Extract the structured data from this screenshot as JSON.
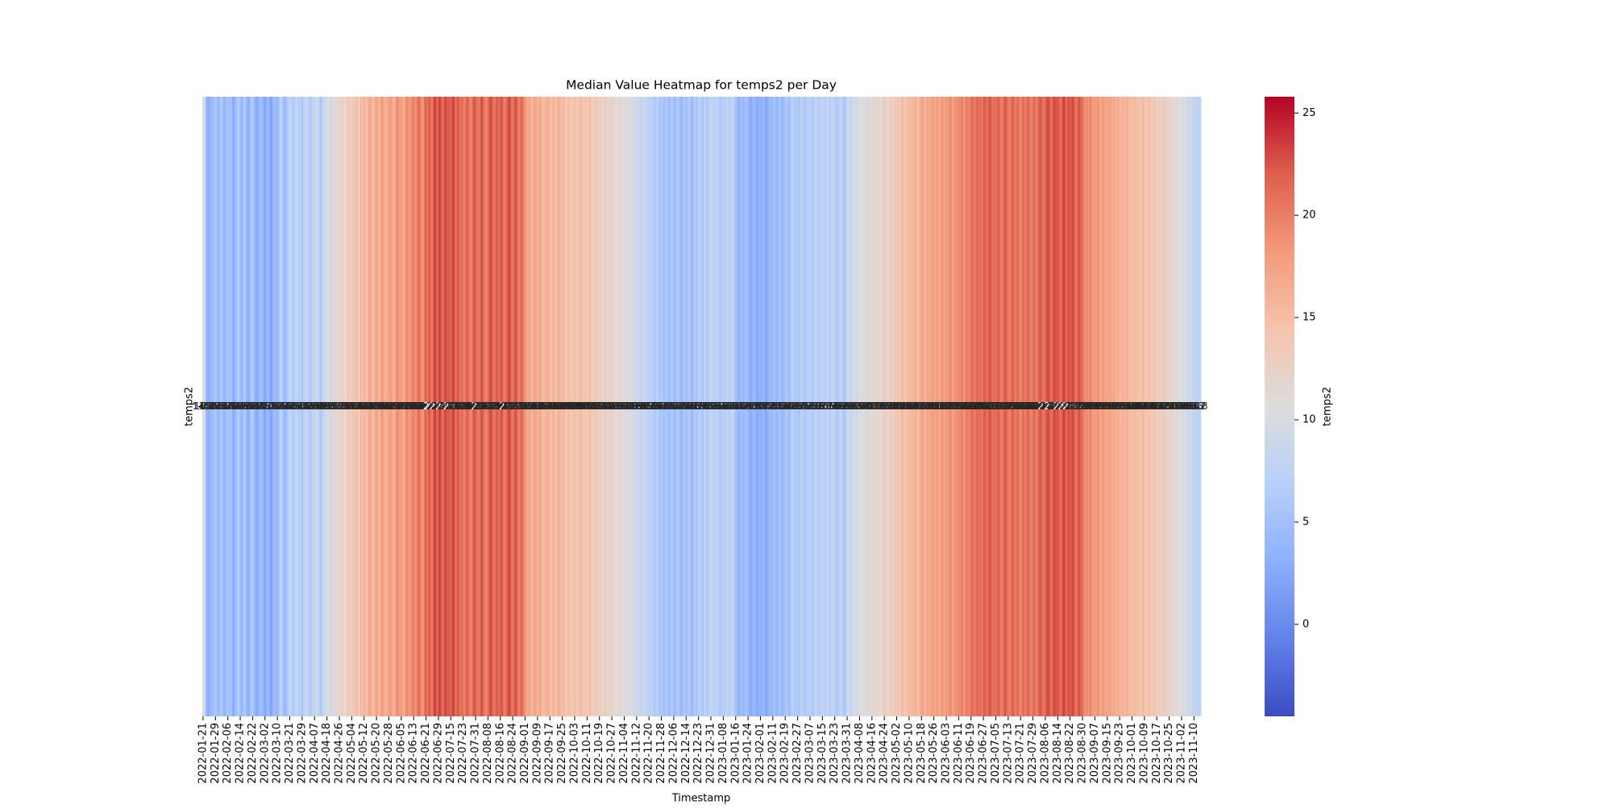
{
  "chart_data": {
    "type": "heatmap",
    "title": "Median Value Heatmap for temps2 per Day",
    "x_label": "Timestamp",
    "rows": [
      "temps2"
    ],
    "colormap": "coolwarm",
    "colorbar": {
      "label": "temps2",
      "lim": [
        -4.5,
        25.8
      ],
      "ticks": [
        0,
        5,
        10,
        15,
        20,
        25
      ]
    },
    "categories": [
      "2022-01-21",
      null,
      null,
      null,
      null,
      null,
      null,
      null,
      "2022-01-29",
      null,
      null,
      null,
      null,
      null,
      null,
      null,
      "2022-02-06",
      null,
      null,
      null,
      null,
      null,
      null,
      null,
      "2022-02-14",
      null,
      null,
      null,
      null,
      null,
      null,
      null,
      "2022-02-22",
      null,
      null,
      null,
      null,
      null,
      null,
      null,
      "2022-03-02",
      null,
      null,
      null,
      null,
      null,
      null,
      null,
      "2022-03-10",
      null,
      null,
      null,
      null,
      null,
      null,
      null,
      "2022-03-21",
      null,
      null,
      null,
      null,
      null,
      null,
      null,
      "2022-03-29",
      null,
      null,
      null,
      null,
      null,
      null,
      null,
      "2022-04-07",
      null,
      null,
      null,
      null,
      null,
      null,
      null,
      "2022-04-18",
      null,
      null,
      null,
      null,
      null,
      null,
      null,
      "2022-04-26",
      null,
      null,
      null,
      null,
      null,
      null,
      null,
      "2022-05-04",
      null,
      null,
      null,
      null,
      null,
      null,
      null,
      "2022-05-12",
      null,
      null,
      null,
      null,
      null,
      null,
      null,
      "2022-05-20",
      null,
      null,
      null,
      null,
      null,
      null,
      null,
      "2022-05-28",
      null,
      null,
      null,
      null,
      null,
      null,
      null,
      "2022-06-05",
      null,
      null,
      null,
      null,
      null,
      null,
      null,
      "2022-06-13",
      null,
      null,
      null,
      null,
      null,
      null,
      null,
      "2022-06-21",
      null,
      null,
      null,
      null,
      null,
      null,
      null,
      "2022-06-29",
      null,
      null,
      null,
      null,
      null,
      null,
      null,
      "2022-07-15",
      null,
      null,
      null,
      null,
      null,
      null,
      null,
      "2022-07-23",
      null,
      null,
      null,
      null,
      null,
      null,
      null,
      "2022-07-31",
      null,
      null,
      null,
      null,
      null,
      null,
      null,
      "2022-08-08",
      null,
      null,
      null,
      null,
      null,
      null,
      null,
      "2022-08-16",
      null,
      null,
      null,
      null,
      null,
      null,
      null,
      "2022-08-24",
      null,
      null,
      null,
      null,
      null,
      null,
      null,
      "2022-09-01",
      null,
      null,
      null,
      null,
      null,
      null,
      null,
      "2022-09-09",
      null,
      null,
      null,
      null,
      null,
      null,
      null,
      "2022-09-17",
      null,
      null,
      null,
      null,
      null,
      null,
      null,
      "2022-09-25",
      null,
      null,
      null,
      null,
      null,
      null,
      null,
      "2022-10-03",
      null,
      null,
      null,
      null,
      null,
      null,
      null,
      "2022-10-11",
      null,
      null,
      null,
      null,
      null,
      null,
      null,
      "2022-10-19",
      null,
      null,
      null,
      null,
      null,
      null,
      null,
      "2022-10-27",
      null,
      null,
      null,
      null,
      null,
      null,
      null,
      "2022-11-04",
      null,
      null,
      null,
      null,
      null,
      null,
      null,
      "2022-11-12",
      null,
      null,
      null,
      null,
      null,
      null,
      null,
      "2022-11-20",
      null,
      null,
      null,
      null,
      null,
      null,
      null,
      "2022-11-28",
      null,
      null,
      null,
      null,
      null,
      null,
      null,
      "2022-12-06",
      null,
      null,
      null,
      null,
      null,
      null,
      null,
      "2022-12-14",
      null,
      null,
      null,
      null,
      null,
      null,
      null,
      "2022-12-23",
      null,
      null,
      null,
      null,
      null,
      null,
      null,
      "2022-12-31",
      null,
      null,
      null,
      null,
      null,
      null,
      null,
      "2023-01-08",
      null,
      null,
      null,
      null,
      null,
      null,
      null,
      "2023-01-16",
      null,
      null,
      null,
      null,
      null,
      null,
      null,
      "2023-01-24",
      null,
      null,
      null,
      null,
      null,
      null,
      null,
      "2023-02-01",
      null,
      null,
      null,
      null,
      null,
      null,
      null,
      "2023-02-11",
      null,
      null,
      null,
      null,
      null,
      null,
      null,
      "2023-02-19",
      null,
      null,
      null,
      null,
      null,
      null,
      null,
      "2023-02-27",
      null,
      null,
      null,
      null,
      null,
      null,
      null,
      "2023-03-07",
      null,
      null,
      null,
      null,
      null,
      null,
      null,
      "2023-03-15",
      null,
      null,
      null,
      null,
      null,
      null,
      null,
      "2023-03-23",
      null,
      null,
      null,
      null,
      null,
      null,
      null,
      "2023-03-31",
      null,
      null,
      null,
      null,
      null,
      null,
      null,
      "2023-04-08",
      null,
      null,
      null,
      null,
      null,
      null,
      null,
      "2023-04-16",
      null,
      null,
      null,
      null,
      null,
      null,
      null,
      "2023-04-24",
      null,
      null,
      null,
      null,
      null,
      null,
      null,
      "2023-05-02",
      null,
      null,
      null,
      null,
      null,
      null,
      null,
      "2023-05-10",
      null,
      null,
      null,
      null,
      null,
      null,
      null,
      "2023-05-18",
      null,
      null,
      null,
      null,
      null,
      null,
      null,
      "2023-05-26",
      null,
      null,
      null,
      null,
      null,
      null,
      null,
      "2023-06-03",
      null,
      null,
      null,
      null,
      null,
      null,
      null,
      "2023-06-11",
      null,
      null,
      null,
      null,
      null,
      null,
      null,
      "2023-06-19",
      null,
      null,
      null,
      null,
      null,
      null,
      null,
      "2023-06-27",
      null,
      null,
      null,
      null,
      null,
      null,
      null,
      "2023-07-05",
      null,
      null,
      null,
      null,
      null,
      null,
      null,
      "2023-07-13",
      null,
      null,
      null,
      null,
      null,
      null,
      null,
      "2023-07-21",
      null,
      null,
      null,
      null,
      null,
      null,
      null,
      "2023-07-29",
      null,
      null,
      null,
      null,
      null,
      null,
      null,
      "2023-08-06",
      null,
      null,
      null,
      null,
      null,
      null,
      null,
      "2023-08-14",
      null,
      null,
      null,
      null,
      null,
      null,
      null,
      "2023-08-22",
      null,
      null,
      null,
      null,
      null,
      null,
      null,
      "2023-08-30",
      null,
      null,
      null,
      null,
      null,
      null,
      null,
      "2023-09-07",
      null,
      null,
      null,
      null,
      null,
      null,
      null,
      "2023-09-15",
      null,
      null,
      null,
      null,
      null,
      null,
      null,
      "2023-09-23",
      null,
      null,
      null,
      null,
      null,
      null,
      null,
      "2023-10-01",
      null,
      null,
      null,
      null,
      null,
      null,
      null,
      "2023-10-09",
      null,
      null,
      null,
      null,
      null,
      null,
      null,
      "2023-10-17",
      null,
      null,
      null,
      null,
      null,
      null,
      null,
      "2023-10-25",
      null,
      null,
      null,
      null,
      null,
      null,
      null,
      "2023-11-02",
      null,
      null,
      null,
      null,
      null,
      null,
      null,
      "2023-11-10",
      null,
      null,
      null,
      null
    ],
    "values": [
      11.2,
      10.4,
      4.1,
      3.2,
      2.8,
      4.5,
      3.9,
      5.1,
      6.3,
      4.8,
      3.5,
      5.6,
      6.1,
      4.2,
      3.7,
      5.0,
      5.9,
      4.4,
      6.2,
      3.1,
      2.6,
      4.8,
      5.5,
      6.7,
      4.9,
      3.8,
      5.2,
      6.4,
      4.1,
      2.9,
      3.6,
      5.8,
      6.5,
      4.3,
      3.2,
      2.4,
      3.9,
      5.1,
      4.6,
      3.3,
      2.1,
      3.4,
      4.7,
      2.8,
      1.9,
      3.6,
      5.0,
      4.2,
      3.8,
      5.6,
      6.9,
      7.4,
      4.5,
      3.9,
      5.2,
      6.8,
      8.1,
      7.2,
      5.9,
      6.6,
      8.4,
      7.8,
      6.3,
      7.0,
      5.4,
      6.8,
      7.9,
      8.6,
      7.1,
      5.8,
      6.4,
      8.3,
      7.6,
      8.8,
      9.4,
      6.9,
      5.7,
      7.3,
      8.5,
      9.1,
      9.8,
      10.6,
      8.9,
      9.5,
      11.2,
      10.1,
      12.3,
      11.0,
      12.8,
      11.5,
      13.2,
      12.1,
      10.9,
      13.6,
      14.1,
      12.7,
      13.4,
      14.6,
      12.9,
      15.2,
      14.0,
      13.1,
      15.8,
      14.4,
      16.2,
      15.1,
      14.7,
      16.8,
      17.3,
      15.6,
      14.9,
      16.4,
      17.6,
      16.3,
      15.4,
      17.9,
      18.2,
      16.7,
      15.8,
      17.1,
      16.9,
      18.4,
      17.2,
      15.9,
      16.6,
      18.8,
      19.1,
      17.5,
      18.3,
      17.0,
      16.4,
      18.9,
      19.6,
      17.8,
      18.6,
      19.2,
      20.1,
      18.7,
      19.4,
      21.3,
      20.6,
      19.0,
      18.2,
      20.8,
      21.7,
      20.3,
      22.5,
      21.1,
      19.8,
      22.9,
      23.4,
      21.6,
      22.2,
      23.8,
      21.5,
      20.9,
      22.7,
      23.1,
      21.9,
      22.4,
      21.2,
      22.8,
      23.5,
      20.7,
      21.8,
      22.3,
      20.4,
      21.4,
      20.5,
      19.7,
      21.6,
      22.1,
      20.2,
      19.3,
      21.0,
      22.6,
      21.9,
      20.8,
      19.9,
      21.4,
      22.9,
      21.3,
      20.0,
      19.5,
      20.7,
      22.4,
      23.0,
      21.7,
      20.1,
      21.5,
      22.2,
      20.9,
      21.8,
      22.7,
      20.6,
      19.8,
      21.2,
      22.5,
      23.3,
      21.1,
      20.3,
      21.9,
      22.8,
      21.0,
      19.6,
      20.8,
      21.6,
      19.9,
      18.4,
      17.2,
      16.5,
      17.8,
      16.1,
      15.7,
      17.4,
      16.8,
      15.9,
      16.6,
      17.1,
      15.3,
      14.8,
      16.2,
      15.5,
      16.9,
      15.2,
      14.6,
      16.0,
      15.8,
      14.3,
      15.6,
      16.4,
      15.1,
      14.9,
      15.7,
      14.2,
      13.8,
      15.4,
      14.7,
      13.5,
      14.4,
      15.1,
      14.0,
      13.6,
      14.8,
      15.5,
      14.3,
      13.9,
      14.6,
      13.7,
      14.5,
      15.2,
      13.3,
      12.9,
      14.1,
      13.4,
      12.6,
      13.1,
      12.4,
      11.8,
      12.9,
      13.5,
      12.2,
      11.6,
      12.7,
      11.9,
      12.5,
      11.3,
      10.8,
      11.7,
      12.1,
      10.4,
      11.2,
      10.7,
      9.9,
      10.3,
      11.1,
      9.6,
      10.5,
      9.2,
      9.8,
      8.9,
      9.4,
      8.3,
      7.7,
      8.6,
      9.1,
      7.9,
      8.2,
      7.4,
      6.8,
      7.9,
      6.3,
      5.9,
      7.1,
      6.6,
      5.4,
      6.2,
      5.7,
      4.9,
      6.5,
      5.3,
      4.6,
      5.8,
      6.1,
      5.0,
      4.4,
      5.9,
      6.3,
      4.8,
      3.9,
      5.5,
      6.0,
      4.7,
      5.6,
      6.4,
      5.1,
      4.3,
      5.8,
      6.7,
      5.2,
      6.9,
      7.4,
      6.1,
      5.5,
      7.8,
      6.6,
      5.9,
      7.2,
      8.3,
      7.6,
      6.8,
      7.1,
      8.0,
      6.4,
      5.7,
      6.9,
      7.3,
      6.2,
      8.1,
      7.7,
      6.5,
      7.9,
      8.4,
      6.8,
      5.4,
      4.7,
      3.6,
      4.2,
      5.1,
      3.8,
      4.9,
      5.6,
      4.1,
      3.3,
      2.7,
      3.9,
      4.6,
      3.1,
      2.4,
      3.5,
      2.9,
      3.7,
      4.4,
      3.0,
      2.2,
      3.4,
      4.8,
      4.0,
      4.5,
      5.3,
      4.2,
      3.6,
      5.7,
      4.9,
      3.8,
      4.3,
      5.6,
      6.4,
      5.1,
      4.7,
      6.8,
      7.2,
      5.9,
      6.3,
      6.0,
      5.4,
      6.9,
      7.5,
      6.2,
      5.7,
      7.1,
      6.6,
      7.8,
      6.5,
      5.8,
      7.3,
      8.2,
      6.9,
      6.1,
      7.6,
      8.0,
      7.2,
      6.7,
      8.5,
      7.9,
      6.4,
      7.4,
      8.8,
      7.0,
      6.3,
      5.9,
      7.7,
      8.3,
      6.8,
      5.5,
      6.6,
      8.6,
      9.3,
      7.8,
      8.1,
      9.7,
      10.2,
      8.9,
      9.5,
      10.4,
      9.8,
      11.1,
      10.7,
      9.4,
      11.6,
      12.0,
      10.9,
      11.3,
      12.2,
      10.8,
      11.9,
      12.6,
      11.0,
      10.5,
      12.4,
      12.9,
      13.4,
      12.1,
      11.7,
      13.8,
      12.5,
      13.1,
      14.2,
      13.6,
      14.5,
      13.0,
      14.9,
      15.3,
      14.1,
      13.7,
      15.0,
      15.6,
      14.8,
      16.1,
      15.2,
      16.7,
      15.9,
      14.6,
      16.4,
      16.9,
      17.4,
      16.2,
      15.8,
      17.7,
      16.5,
      17.1,
      18.0,
      17.3,
      16.8,
      18.3,
      17.6,
      16.4,
      18.7,
      17.9,
      17.0,
      18.5,
      17.8,
      18.9,
      19.3,
      17.5,
      18.1,
      19.0,
      18.4,
      19.6,
      18.8,
      20.2,
      19.1,
      18.6,
      20.5,
      19.8,
      19.4,
      20.7,
      21.4,
      19.9,
      20.3,
      21.8,
      20.9,
      21.2,
      20.0,
      21.6,
      22.3,
      20.8,
      21.1,
      22.7,
      21.9,
      20.5,
      21.3,
      20.6,
      21.7,
      22.1,
      20.2,
      19.7,
      21.0,
      22.5,
      21.5,
      20.4,
      19.6,
      21.3,
      22.0,
      20.8,
      19.9,
      21.6,
      20.3,
      19.2,
      20.5,
      21.1,
      19.8,
      20.9,
      21.8,
      20.1,
      19.5,
      20.7,
      21.4,
      19.9,
      20.2,
      21.9,
      22.4,
      21.0,
      20.6,
      21.5,
      22.6,
      23.1,
      21.8,
      20.9,
      22.2,
      23.4,
      22.0,
      22.8,
      21.6,
      20.7,
      22.4,
      23.6,
      22.1,
      21.3,
      22.9,
      21.7,
      22.5,
      23.2,
      21.2,
      20.5,
      21.9,
      22.7,
      21.4,
      20.8,
      19.6,
      18.9,
      19.3,
      18.4,
      19.9,
      18.7,
      17.9,
      18.2,
      17.6,
      18.8,
      17.3,
      16.9,
      18.5,
      17.8,
      17.1,
      17.4,
      16.7,
      17.9,
      16.3,
      17.2,
      16.8,
      15.9,
      16.5,
      16.1,
      15.6,
      16.6,
      15.2,
      15.9,
      16.4,
      15.4,
      14.9,
      15.3,
      14.7,
      15.8,
      14.4,
      15.0,
      14.1,
      14.8,
      15.5,
      14.6,
      13.9,
      14.3,
      15.1,
      14.0,
      13.5,
      14.4,
      13.8,
      13.2,
      12.7,
      13.6,
      12.3,
      12.9,
      13.4,
      12.1,
      12.5,
      12.0,
      11.6,
      12.4,
      11.2,
      10.8,
      11.9,
      11.4,
      10.6,
      10.2,
      9.7,
      10.5,
      9.3,
      9.9,
      8.8,
      9.5,
      8.4,
      8.0,
      7.6,
      8.3,
      7.2,
      7.8
    ]
  }
}
